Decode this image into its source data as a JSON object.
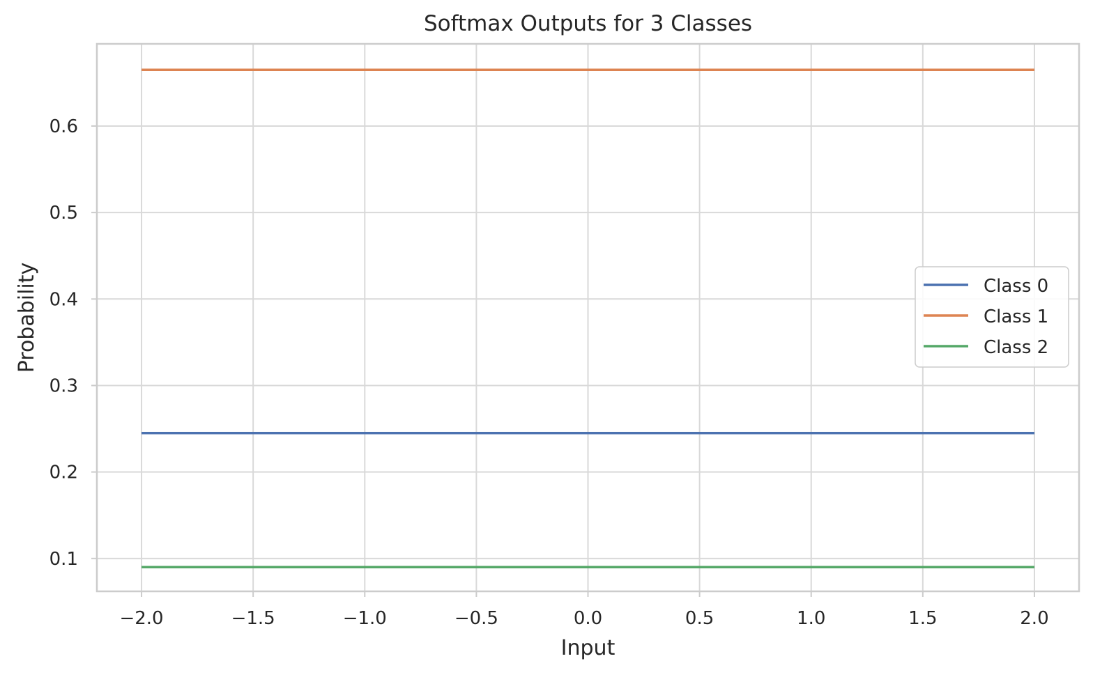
{
  "chart_data": {
    "type": "line",
    "title": "Softmax Outputs for 3 Classes",
    "xlabel": "Input",
    "ylabel": "Probability",
    "xlim": [
      -2.2,
      2.2
    ],
    "ylim": [
      0.062,
      0.695
    ],
    "x_ticks": [
      -2.0,
      -1.5,
      -1.0,
      -0.5,
      0.0,
      0.5,
      1.0,
      1.5,
      2.0
    ],
    "x_tick_labels": [
      "−2.0",
      "−1.5",
      "−1.0",
      "−0.5",
      "0.0",
      "0.5",
      "1.0",
      "1.5",
      "2.0"
    ],
    "y_ticks": [
      0.1,
      0.2,
      0.3,
      0.4,
      0.5,
      0.6
    ],
    "y_tick_labels": [
      "0.1",
      "0.2",
      "0.3",
      "0.4",
      "0.5",
      "0.6"
    ],
    "grid": true,
    "legend_position": "center-right",
    "x": [
      -2.0,
      2.0
    ],
    "series": [
      {
        "name": "Class 0",
        "values": [
          0.245,
          0.245
        ],
        "color": "#4c72b0"
      },
      {
        "name": "Class 1",
        "values": [
          0.665,
          0.665
        ],
        "color": "#dd8452"
      },
      {
        "name": "Class 2",
        "values": [
          0.09,
          0.09
        ],
        "color": "#55a868"
      }
    ]
  }
}
